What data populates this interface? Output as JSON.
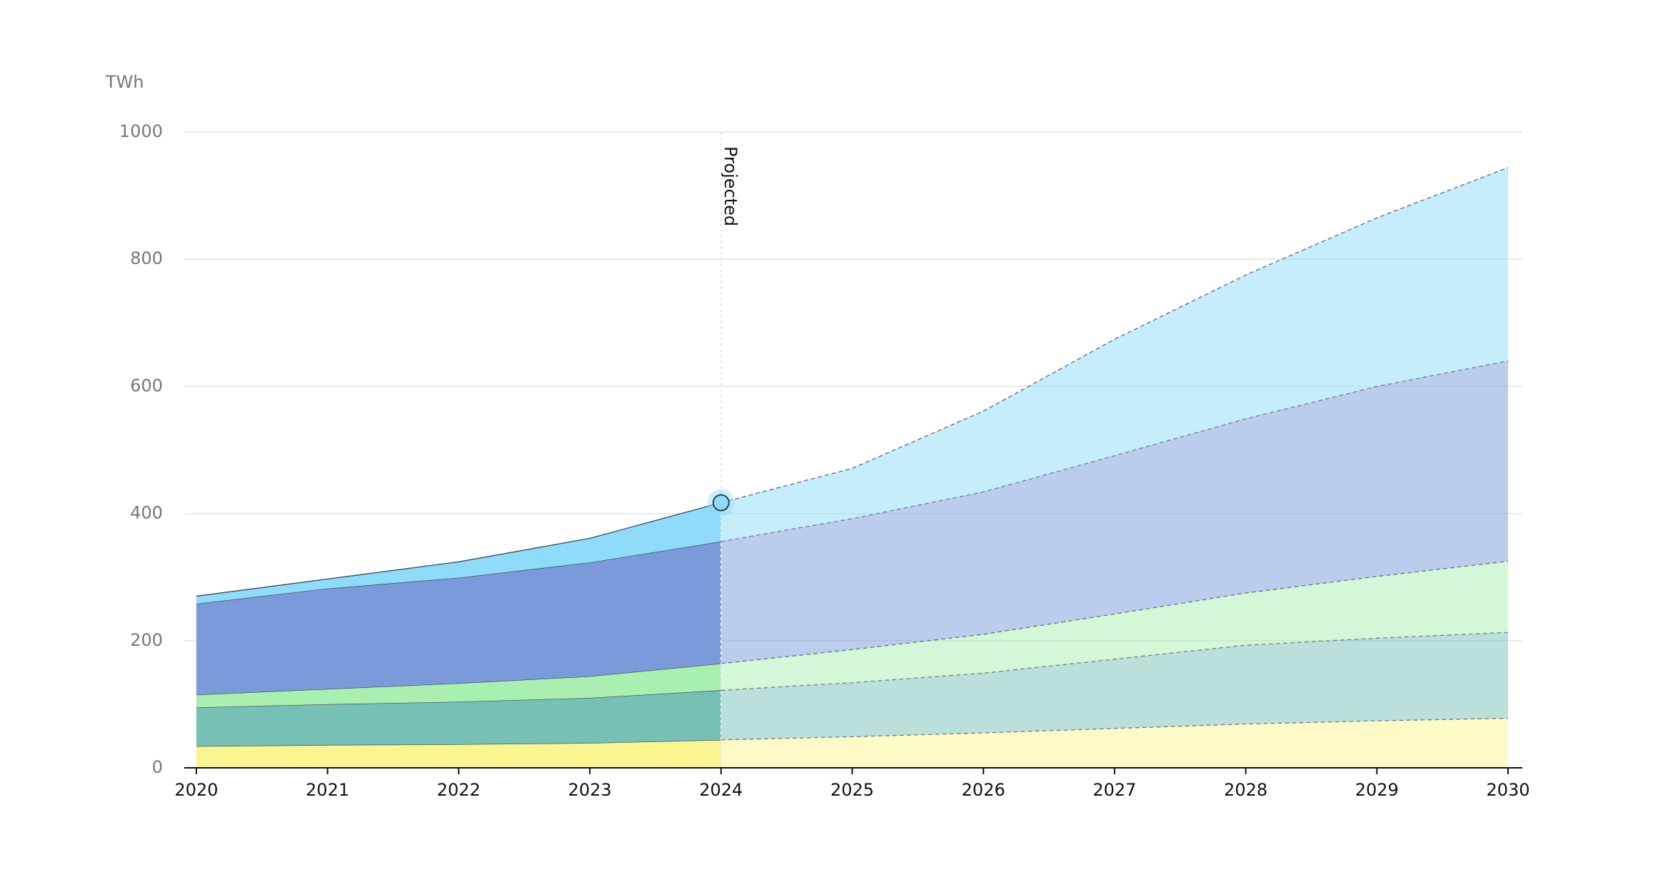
{
  "chart_data": {
    "type": "stacked_area",
    "y_label": "TWh",
    "annotation": "Projected",
    "projected_from": 2024,
    "x": [
      2020,
      2021,
      2022,
      2023,
      2024,
      2025,
      2026,
      2027,
      2028,
      2029,
      2030
    ],
    "xlim": [
      2020,
      2030
    ],
    "xticks": [
      2020,
      2021,
      2022,
      2023,
      2024,
      2025,
      2026,
      2027,
      2028,
      2029,
      2030
    ],
    "ylim": [
      0,
      1000
    ],
    "yticks": [
      0,
      200,
      400,
      600,
      800,
      1000
    ],
    "grid": true,
    "series": [
      {
        "color": "#fbf591",
        "values": [
          34,
          36,
          37,
          39,
          44,
          49,
          55,
          62,
          69,
          74,
          78
        ]
      },
      {
        "color": "#77c0b5",
        "values": [
          61,
          64,
          67,
          71,
          78,
          85,
          94,
          109,
          124,
          130,
          135
        ]
      },
      {
        "color": "#a8efb0",
        "values": [
          20,
          24,
          29,
          34,
          42,
          52,
          61,
          71,
          82,
          97,
          112
        ]
      },
      {
        "color": "#7a9ad9",
        "values": [
          143,
          158,
          166,
          179,
          192,
          206,
          224,
          249,
          274,
          299,
          315
        ]
      },
      {
        "color": "#8edcf9",
        "values": [
          12,
          15,
          25,
          38,
          61,
          79,
          127,
          183,
          226,
          265,
          304
        ]
      }
    ]
  }
}
